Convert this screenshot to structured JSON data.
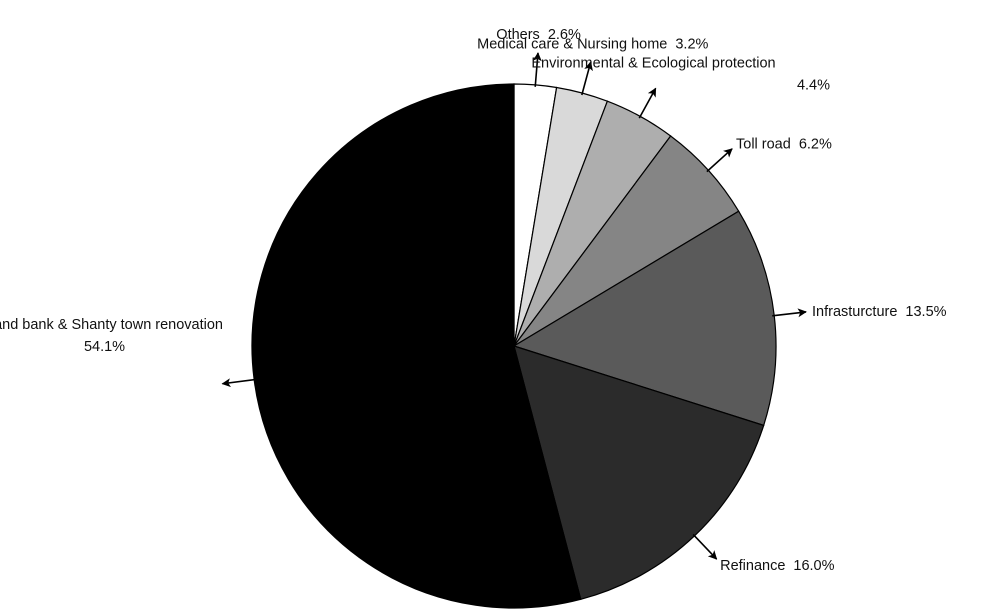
{
  "chart_data": {
    "type": "pie",
    "start_angle_deg": 0,
    "direction": "clockwise",
    "slices": [
      {
        "name": "Others",
        "value": 2.6,
        "pct_label": "2.6%",
        "label_layout": "inline",
        "color": "#ffffff"
      },
      {
        "name": "Medical care & Nursing home",
        "value": 3.2,
        "pct_label": "3.2%",
        "label_layout": "inline",
        "color": "#d9d9d9"
      },
      {
        "name": "Environmental & Ecological protection",
        "value": 4.4,
        "pct_label": "4.4%",
        "label_layout": "stacked",
        "color": "#aeaeae"
      },
      {
        "name": "Toll road",
        "value": 6.2,
        "pct_label": "6.2%",
        "label_layout": "inline",
        "color": "#858585"
      },
      {
        "name": "Infrasturcture",
        "value": 13.5,
        "pct_label": "13.5%",
        "label_layout": "inline",
        "color": "#5a5a5a"
      },
      {
        "name": "Refinance",
        "value": 16.0,
        "pct_label": "16.0%",
        "label_layout": "inline",
        "color": "#2b2b2b"
      },
      {
        "name": "Land bank & Shanty town renovation",
        "value": 54.1,
        "pct_label": "54.1%",
        "label_layout": "stacked",
        "color": "#000000"
      }
    ]
  }
}
